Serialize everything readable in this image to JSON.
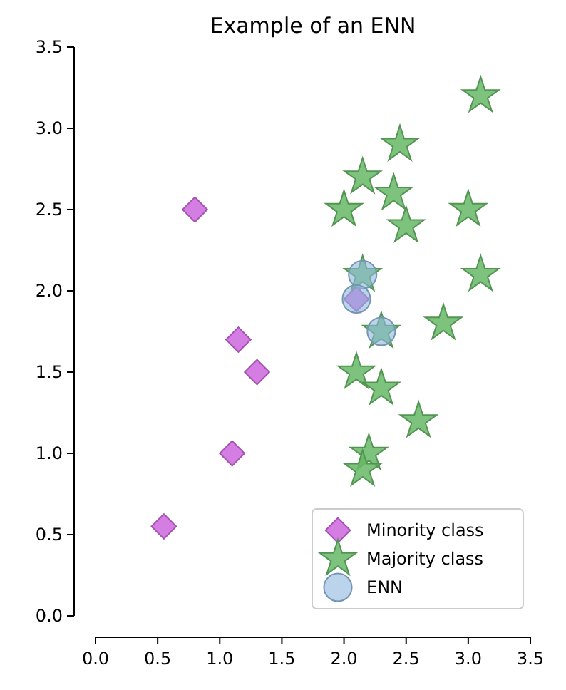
{
  "chart_data": {
    "type": "scatter",
    "title": "Example of an ENN",
    "xlim": [
      0,
      3.5
    ],
    "ylim": [
      0,
      3.5
    ],
    "xticks": [
      {
        "value": 0,
        "label": "0.0"
      },
      {
        "value": 0.5,
        "label": "0.5"
      },
      {
        "value": 1,
        "label": "1.0"
      },
      {
        "value": 1.5,
        "label": "1.5"
      },
      {
        "value": 2,
        "label": "2.0"
      },
      {
        "value": 2.5,
        "label": "2.5"
      },
      {
        "value": 3,
        "label": "3.0"
      },
      {
        "value": 3.5,
        "label": "3.5"
      }
    ],
    "yticks": [
      {
        "value": 0,
        "label": "0.0"
      },
      {
        "value": 0.5,
        "label": "0.5"
      },
      {
        "value": 1,
        "label": "1.0"
      },
      {
        "value": 1.5,
        "label": "1.5"
      },
      {
        "value": 2,
        "label": "2.0"
      },
      {
        "value": 2.5,
        "label": "2.5"
      },
      {
        "value": 3,
        "label": "3.0"
      },
      {
        "value": 3.5,
        "label": "3.5"
      }
    ],
    "grid": false,
    "legend": "bottom right",
    "series": [
      {
        "name": "Minority class",
        "color": "#cc66dd",
        "marker": "diamond",
        "x": [
          0.8,
          1.15,
          1.3,
          1.1,
          0.55,
          2.1
        ],
        "values": [
          2.5,
          1.7,
          1.5,
          1.0,
          0.55,
          1.95
        ]
      },
      {
        "name": "Majority class",
        "color": "#66b866",
        "marker": "star",
        "x": [
          3.1,
          2.45,
          2.15,
          2.4,
          2.0,
          3.0,
          2.5,
          2.15,
          3.1,
          2.3,
          2.8,
          2.1,
          2.3,
          2.6,
          2.2,
          2.15
        ],
        "values": [
          3.2,
          2.9,
          2.7,
          2.6,
          2.5,
          2.5,
          2.4,
          2.1,
          2.1,
          1.75,
          1.8,
          1.5,
          1.4,
          1.2,
          1.0,
          0.9
        ]
      },
      {
        "name": "ENN",
        "color": "#8fb8dd",
        "marker": "circle",
        "x": [
          2.15,
          2.1,
          2.3
        ],
        "values": [
          2.1,
          1.95,
          1.75
        ]
      }
    ]
  }
}
